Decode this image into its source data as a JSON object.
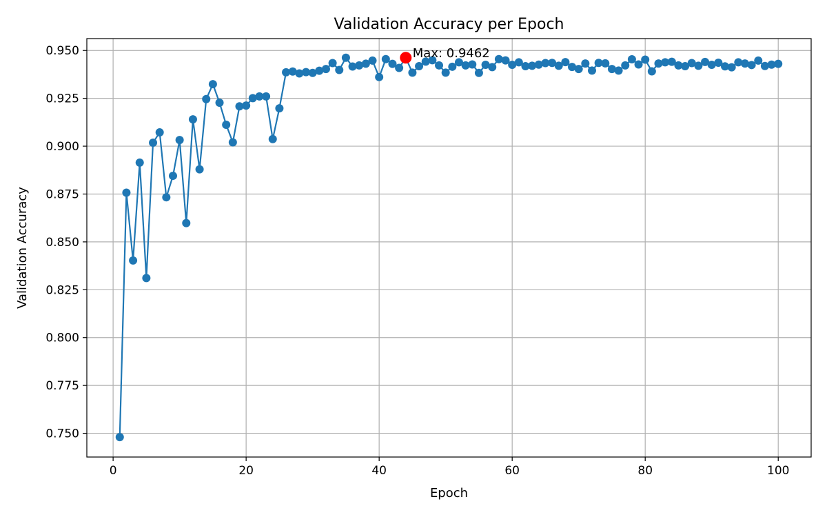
{
  "chart_data": {
    "type": "line",
    "title": "Validation Accuracy per Epoch",
    "xlabel": "Epoch",
    "ylabel": "Validation Accuracy",
    "xlim": [
      -3.95,
      104.95
    ],
    "ylim": [
      0.7376,
      0.9562
    ],
    "x_ticks": [
      0,
      20,
      40,
      60,
      80,
      100
    ],
    "y_ticks": [
      0.75,
      0.775,
      0.8,
      0.825,
      0.85,
      0.875,
      0.9,
      0.925,
      0.95
    ],
    "x_tick_labels": [
      "0",
      "20",
      "40",
      "60",
      "80",
      "100"
    ],
    "y_tick_labels": [
      "0.750",
      "0.775",
      "0.800",
      "0.825",
      "0.850",
      "0.875",
      "0.900",
      "0.925",
      "0.950"
    ],
    "grid": true,
    "series": [
      {
        "color": "#1f77b4",
        "marker": "circle",
        "x": [
          1,
          2,
          3,
          4,
          5,
          6,
          7,
          8,
          9,
          10,
          11,
          12,
          13,
          14,
          15,
          16,
          17,
          18,
          19,
          20,
          21,
          22,
          23,
          24,
          25,
          26,
          27,
          28,
          29,
          30,
          31,
          32,
          33,
          34,
          35,
          36,
          37,
          38,
          39,
          40,
          41,
          42,
          43,
          44,
          45,
          46,
          47,
          48,
          49,
          50,
          51,
          52,
          53,
          54,
          55,
          56,
          57,
          58,
          59,
          60,
          61,
          62,
          63,
          64,
          65,
          66,
          67,
          68,
          69,
          70,
          71,
          72,
          73,
          74,
          75,
          76,
          77,
          78,
          79,
          80,
          81,
          82,
          83,
          84,
          85,
          86,
          87,
          88,
          89,
          90,
          91,
          92,
          93,
          94,
          95,
          96,
          97,
          98,
          99,
          100
        ],
        "values": [
          0.748,
          0.8757,
          0.8403,
          0.8914,
          0.8311,
          0.9018,
          0.9072,
          0.8733,
          0.8845,
          0.9032,
          0.8598,
          0.914,
          0.8879,
          0.9246,
          0.9324,
          0.9227,
          0.9112,
          0.902,
          0.9208,
          0.9212,
          0.9251,
          0.926,
          0.926,
          0.9037,
          0.9198,
          0.9386,
          0.939,
          0.938,
          0.9387,
          0.9383,
          0.9394,
          0.9403,
          0.9434,
          0.9398,
          0.9462,
          0.9416,
          0.9422,
          0.9431,
          0.9447,
          0.9361,
          0.9455,
          0.943,
          0.9409,
          0.9462,
          0.9384,
          0.9418,
          0.9442,
          0.9449,
          0.9422,
          0.9384,
          0.9415,
          0.9438,
          0.9422,
          0.9427,
          0.9383,
          0.9425,
          0.9413,
          0.9455,
          0.9448,
          0.9425,
          0.9438,
          0.9418,
          0.942,
          0.9426,
          0.9434,
          0.9435,
          0.942,
          0.9439,
          0.9414,
          0.9403,
          0.9432,
          0.9395,
          0.9435,
          0.9433,
          0.9403,
          0.9395,
          0.9422,
          0.9454,
          0.9427,
          0.9452,
          0.9391,
          0.9432,
          0.9438,
          0.9441,
          0.9422,
          0.9418,
          0.9434,
          0.942,
          0.944,
          0.9425,
          0.9436,
          0.9417,
          0.9412,
          0.9438,
          0.9432,
          0.9424,
          0.9447,
          0.9419,
          0.9426,
          0.943
        ]
      }
    ],
    "highlight": {
      "x": 44,
      "y": 0.9462,
      "color": "#ff0000",
      "label": "Max: 0.9462"
    }
  }
}
